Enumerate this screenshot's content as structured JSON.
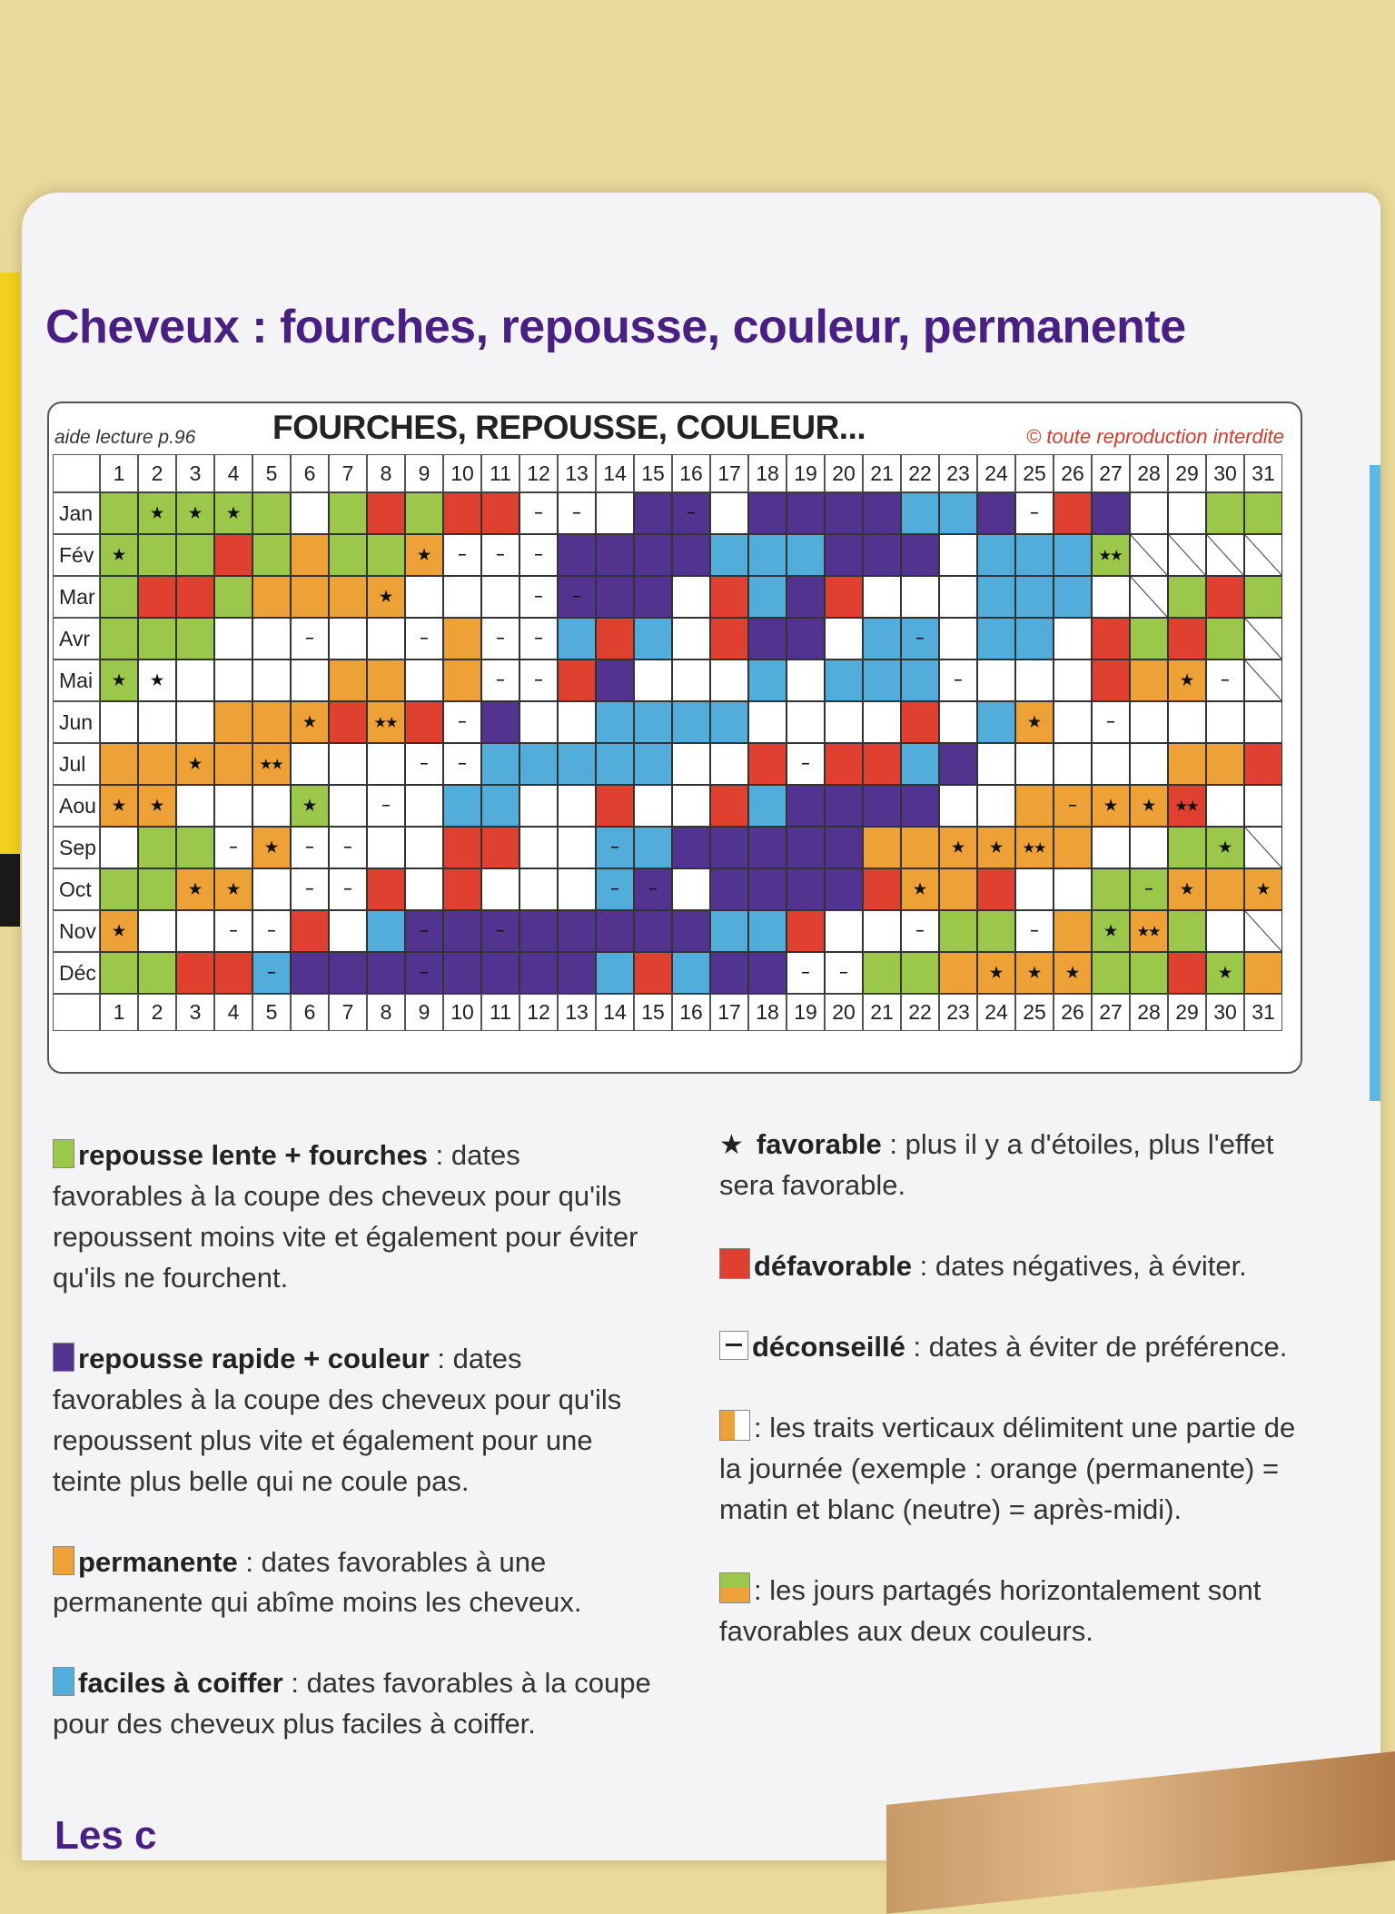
{
  "page_title": "Cheveux : fourches, repousse, couleur, permanente",
  "chart_header": {
    "aide": "aide lecture p.96",
    "title": "FOURCHES, REPOUSSE, COULEUR...",
    "copyright": "© toute reproduction interdite"
  },
  "colors": {
    "repousse_lente": "#9bc84a",
    "repousse_rapide": "#523390",
    "permanente": "#eea136",
    "faciles": "#52addb",
    "defavorable": "#e04030",
    "neutre": "#ffffff"
  },
  "days": [
    "1",
    "2",
    "3",
    "4",
    "5",
    "6",
    "7",
    "8",
    "9",
    "10",
    "11",
    "12",
    "13",
    "14",
    "15",
    "16",
    "17",
    "18",
    "19",
    "20",
    "21",
    "22",
    "23",
    "24",
    "25",
    "26",
    "27",
    "28",
    "29",
    "30",
    "31"
  ],
  "calendar": [
    {
      "month": "Jan",
      "cells": [
        "G",
        "G",
        "G",
        "G",
        "G",
        "W",
        "G",
        "R",
        "G",
        "R",
        "R",
        "W",
        "W",
        "W",
        "V",
        "V",
        "W",
        "V",
        "V",
        "V",
        "V",
        "B",
        "B",
        "V",
        "W",
        "R",
        "V",
        "W",
        "W",
        "G",
        "G"
      ],
      "marks": {
        "2": "★",
        "3": "★",
        "4": "★",
        "12": "–",
        "13": "–",
        "16": "–",
        "25": "–"
      }
    },
    {
      "month": "Fév",
      "cells": [
        "G",
        "G",
        "G",
        "R",
        "G",
        "O",
        "G",
        "G",
        "O",
        "W",
        "W",
        "W",
        "V",
        "V",
        "V",
        "V",
        "B",
        "B",
        "B",
        "V",
        "V",
        "V",
        "W",
        "B",
        "B",
        "B",
        "G",
        "X",
        "X",
        "X",
        "X"
      ],
      "marks": {
        "1": "★",
        "9": "★",
        "10": "–",
        "11": "–",
        "12": "–",
        "27": "★★"
      }
    },
    {
      "month": "Mar",
      "cells": [
        "G",
        "R",
        "R",
        "G",
        "O",
        "O",
        "O",
        "O",
        "W",
        "W",
        "W",
        "W",
        "V",
        "V",
        "V",
        "W",
        "R",
        "B",
        "V",
        "R",
        "W",
        "W",
        "W",
        "B",
        "B",
        "B",
        "W",
        "X",
        "G",
        "R",
        "G"
      ],
      "marks": {
        "8": "★",
        "12": "–",
        "13": "–"
      }
    },
    {
      "month": "Avr",
      "cells": [
        "G",
        "G",
        "G",
        "W",
        "W",
        "W",
        "W",
        "W",
        "W",
        "O",
        "W",
        "W",
        "B",
        "R",
        "B",
        "W",
        "R",
        "V",
        "V",
        "W",
        "B",
        "B",
        "W",
        "B",
        "B",
        "W",
        "R",
        "G",
        "R",
        "G",
        "X"
      ],
      "marks": {
        "6": "–",
        "9": "–",
        "11": "–",
        "12": "–",
        "22": "–"
      }
    },
    {
      "month": "Mai",
      "cells": [
        "G",
        "W",
        "W",
        "W",
        "W",
        "W",
        "O",
        "O",
        "W",
        "O",
        "W",
        "W",
        "R",
        "V",
        "W",
        "W",
        "W",
        "B",
        "W",
        "B",
        "B",
        "B",
        "W",
        "W",
        "W",
        "W",
        "R",
        "O",
        "O",
        "W",
        "X"
      ],
      "marks": {
        "1": "★",
        "2": "★",
        "11": "–",
        "12": "–",
        "23": "–",
        "29": "★",
        "30": "–"
      }
    },
    {
      "month": "Jun",
      "cells": [
        "W",
        "W",
        "W",
        "O",
        "O",
        "O",
        "R",
        "O",
        "R",
        "W",
        "V",
        "W",
        "W",
        "B",
        "B",
        "B",
        "B",
        "W",
        "W",
        "W",
        "W",
        "R",
        "W",
        "B",
        "O",
        "W",
        "W",
        "W",
        "W",
        "W",
        "W"
      ],
      "marks": {
        "6": "★",
        "8": "★★",
        "10": "–",
        "25": "★",
        "27": "–"
      }
    },
    {
      "month": "Jul",
      "cells": [
        "O",
        "O",
        "O",
        "O",
        "O",
        "W",
        "W",
        "W",
        "W",
        "W",
        "B",
        "B",
        "B",
        "B",
        "B",
        "W",
        "W",
        "R",
        "W",
        "R",
        "R",
        "B",
        "V",
        "W",
        "W",
        "W",
        "W",
        "W",
        "O",
        "O",
        "R"
      ],
      "marks": {
        "3": "★",
        "5": "★★",
        "9": "–",
        "10": "–",
        "19": "–"
      }
    },
    {
      "month": "Aou",
      "cells": [
        "O",
        "O",
        "W",
        "W",
        "W",
        "G",
        "W",
        "W",
        "W",
        "B",
        "B",
        "W",
        "W",
        "R",
        "W",
        "W",
        "R",
        "B",
        "V",
        "V",
        "V",
        "V",
        "W",
        "W",
        "O",
        "O",
        "O",
        "O",
        "R",
        "W",
        "W"
      ],
      "marks": {
        "1": "★",
        "2": "★",
        "6": "★",
        "8": "–",
        "26": "–",
        "27": "★",
        "28": "★",
        "29": "★★"
      }
    },
    {
      "month": "Sep",
      "cells": [
        "W",
        "G",
        "G",
        "W",
        "O",
        "W",
        "W",
        "W",
        "W",
        "R",
        "R",
        "W",
        "W",
        "B",
        "B",
        "V",
        "V",
        "V",
        "V",
        "V",
        "O",
        "O",
        "O",
        "O",
        "O",
        "O",
        "W",
        "W",
        "G",
        "G",
        "X"
      ],
      "marks": {
        "4": "–",
        "5": "★",
        "6": "–",
        "7": "–",
        "14": "–",
        "23": "★",
        "24": "★",
        "25": "★★",
        "30": "★"
      }
    },
    {
      "month": "Oct",
      "cells": [
        "G",
        "G",
        "O",
        "O",
        "W",
        "W",
        "W",
        "R",
        "W",
        "R",
        "W",
        "W",
        "W",
        "B",
        "V",
        "W",
        "V",
        "V",
        "V",
        "V",
        "R",
        "O",
        "O",
        "R",
        "W",
        "W",
        "G",
        "G",
        "O",
        "O",
        "O"
      ],
      "marks": {
        "3": "★",
        "4": "★",
        "6": "–",
        "7": "–",
        "14": "–",
        "15": "–",
        "22": "★",
        "28": "–",
        "29": "★",
        "31": "★"
      }
    },
    {
      "month": "Nov",
      "cells": [
        "O",
        "W",
        "W",
        "W",
        "W",
        "R",
        "W",
        "B",
        "V",
        "V",
        "V",
        "V",
        "V",
        "V",
        "V",
        "V",
        "B",
        "B",
        "R",
        "W",
        "W",
        "W",
        "G",
        "G",
        "W",
        "O",
        "G",
        "O",
        "G",
        "W",
        "X"
      ],
      "marks": {
        "1": "★",
        "4": "–",
        "5": "–",
        "9": "–",
        "11": "–",
        "22": "–",
        "25": "–",
        "27": "★",
        "28": "★★"
      }
    },
    {
      "month": "Déc",
      "cells": [
        "G",
        "G",
        "R",
        "R",
        "B",
        "V",
        "V",
        "V",
        "V",
        "V",
        "V",
        "V",
        "V",
        "B",
        "R",
        "B",
        "V",
        "V",
        "W",
        "W",
        "G",
        "G",
        "O",
        "O",
        "O",
        "O",
        "G",
        "G",
        "R",
        "G",
        "O"
      ],
      "marks": {
        "5": "–",
        "9": "–",
        "19": "–",
        "20": "–",
        "24": "★",
        "25": "★",
        "26": "★",
        "30": "★"
      }
    }
  ],
  "legend_left": [
    {
      "swatch": "G",
      "title": "repousse lente + fourches",
      "sep": " : ",
      "text": "dates favorables à la coupe des cheveux pour qu'ils repoussent moins vite et également pour éviter qu'ils ne fourchent."
    },
    {
      "swatch": "V",
      "title": "repousse rapide + couleur",
      "sep": " : ",
      "text": "dates favorables à la coupe des cheveux pour qu'ils repoussent plus vite et également pour une teinte plus belle qui ne coule pas."
    },
    {
      "swatch": "O",
      "title": "permanente",
      "sep": " : ",
      "text": "dates favorables à une permanente qui abîme moins les cheveux."
    },
    {
      "swatch": "B",
      "title": "faciles à coiffer",
      "sep": " : ",
      "text": "dates favorables à la coupe pour des cheveux plus faciles à coiffer."
    }
  ],
  "legend_right": [
    {
      "swatch": "star",
      "title": "favorable",
      "sep": " : ",
      "text": "plus il y a d'étoiles, plus l'effet sera favorable."
    },
    {
      "swatch": "R",
      "title": "défavorable",
      "sep": " : ",
      "text": "dates négatives, à éviter."
    },
    {
      "swatch": "D",
      "title": "déconseillé",
      "sep": " : ",
      "text": "dates à éviter de préférence."
    },
    {
      "swatch": "S",
      "title": "",
      "sep": ": ",
      "text": "les traits verticaux délimitent une partie de la journée (exemple : orange (permanente) = matin et blanc (neutre) = après-midi)."
    },
    {
      "swatch": "H",
      "title": "",
      "sep": ": ",
      "text": "les jours partagés horizontalement sont favorables aux deux couleurs."
    }
  ],
  "footer_heading": "Les c"
}
